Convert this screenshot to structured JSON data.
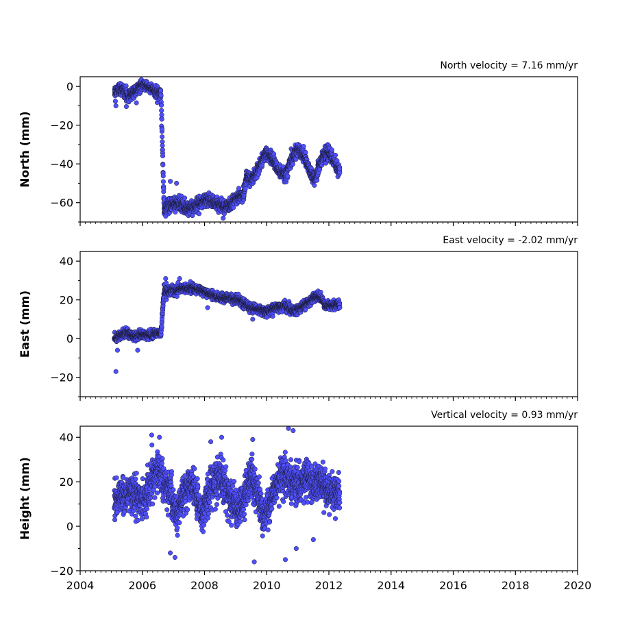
{
  "chart_data": {
    "type": "scatter",
    "layout": "3 vertically stacked panels sharing the x axis",
    "x_axis": {
      "xlim": [
        2004,
        2020
      ],
      "major_ticks": [
        2004,
        2006,
        2008,
        2010,
        2012,
        2014,
        2016,
        2018,
        2020
      ],
      "tick_labels": [
        "2004",
        "2006",
        "2008",
        "2010",
        "2012",
        "2014",
        "2016",
        "2018",
        "2020"
      ],
      "minor_tick_step_years": 0.16666
    },
    "marker": {
      "fill": "#4f4fff",
      "edge": "#1a1a33",
      "shape": "circle"
    },
    "panels": [
      {
        "key": "north",
        "title": "North velocity = 7.16 mm/yr",
        "ylabel": "North (mm)",
        "ylim": [
          -70,
          5
        ],
        "yticks": [
          0,
          -20,
          -40,
          -60
        ],
        "ytick_labels": [
          "0",
          "−20",
          "−40",
          "−60"
        ],
        "series": {
          "name": "",
          "x": [
            2005.1,
            2005.25,
            2005.4,
            2005.55,
            2005.7,
            2005.85,
            2006.0,
            2006.15,
            2006.3,
            2006.45,
            2006.6,
            2006.7,
            2006.9,
            2007.1,
            2007.3,
            2007.5,
            2007.7,
            2007.9,
            2008.1,
            2008.3,
            2008.5,
            2008.7,
            2008.9,
            2009.1,
            2009.25,
            2009.35,
            2009.5,
            2009.65,
            2009.8,
            2010.0,
            2010.2,
            2010.4,
            2010.6,
            2010.8,
            2011.0,
            2011.2,
            2011.4,
            2011.55,
            2011.7,
            2011.85,
            2012.0,
            2012.2,
            2012.35
          ],
          "y": [
            -3,
            -1,
            -2,
            -5,
            -3,
            -1,
            1,
            0,
            -1,
            -3,
            -4,
            -63,
            -61,
            -60,
            -62,
            -63,
            -62,
            -60,
            -58,
            -60,
            -61,
            -62,
            -60,
            -56,
            -57,
            -46,
            -48,
            -45,
            -40,
            -34,
            -38,
            -44,
            -46,
            -38,
            -32,
            -36,
            -44,
            -48,
            -40,
            -35,
            -34,
            -40,
            -44
          ],
          "spread": [
            3,
            3,
            3,
            3,
            3,
            3,
            2,
            2,
            2,
            3,
            3,
            3,
            3,
            3,
            3,
            3,
            3,
            3,
            3,
            3,
            3,
            3,
            3,
            3,
            3,
            3,
            3,
            3,
            3,
            3,
            3,
            3,
            3,
            3,
            3,
            3,
            3,
            3,
            3,
            3,
            3,
            3,
            3
          ],
          "outliers": [
            [
              2005.15,
              -10
            ],
            [
              2006.9,
              -49
            ],
            [
              2007.1,
              -50
            ],
            [
              2006.75,
              -67
            ],
            [
              2008.6,
              -68
            ]
          ]
        }
      },
      {
        "key": "east",
        "title": "East velocity = -2.02 mm/yr",
        "ylabel": "East (mm)",
        "ylim": [
          -30,
          45
        ],
        "yticks": [
          40,
          20,
          0,
          -20
        ],
        "ytick_labels": [
          "40",
          "20",
          "0",
          "−20"
        ],
        "series": {
          "name": "",
          "x": [
            2005.1,
            2005.3,
            2005.5,
            2005.7,
            2005.9,
            2006.1,
            2006.3,
            2006.5,
            2006.6,
            2006.7,
            2007.0,
            2007.3,
            2007.6,
            2007.9,
            2008.2,
            2008.5,
            2008.8,
            2009.1,
            2009.4,
            2009.7,
            2010.0,
            2010.3,
            2010.6,
            2010.9,
            2011.2,
            2011.5,
            2011.7,
            2011.9,
            2012.1,
            2012.35
          ],
          "y": [
            0,
            2,
            3,
            1,
            2,
            2,
            2,
            3,
            3,
            24,
            25,
            26,
            26,
            25,
            23,
            21,
            21,
            20,
            17,
            15,
            14,
            16,
            17,
            14,
            17,
            21,
            22,
            17,
            17,
            18
          ],
          "spread": [
            2,
            2,
            2,
            2,
            2,
            2,
            2,
            2,
            2,
            2.5,
            2.5,
            2,
            2,
            2,
            2,
            2,
            2,
            2,
            2,
            2,
            2,
            2,
            2,
            2,
            2,
            2,
            2,
            2,
            2,
            2
          ],
          "outliers": [
            [
              2005.15,
              -17
            ],
            [
              2005.2,
              -6
            ],
            [
              2005.85,
              -6
            ],
            [
              2006.75,
              31
            ],
            [
              2007.2,
              31
            ],
            [
              2008.1,
              16
            ],
            [
              2009.55,
              10
            ],
            [
              2010.0,
              11
            ]
          ]
        }
      },
      {
        "key": "height",
        "title": "Vertical velocity = 0.93 mm/yr",
        "ylabel": "Height (mm)",
        "ylim": [
          -20,
          45
        ],
        "yticks": [
          40,
          20,
          0,
          -20
        ],
        "ytick_labels": [
          "40",
          "20",
          "0",
          "−20"
        ],
        "series": {
          "name": "",
          "x": [
            2005.1,
            2005.3,
            2005.5,
            2005.7,
            2005.9,
            2006.1,
            2006.3,
            2006.5,
            2006.7,
            2006.9,
            2007.1,
            2007.3,
            2007.5,
            2007.7,
            2007.9,
            2008.1,
            2008.3,
            2008.5,
            2008.7,
            2008.9,
            2009.1,
            2009.3,
            2009.5,
            2009.7,
            2009.9,
            2010.1,
            2010.3,
            2010.5,
            2010.7,
            2010.9,
            2011.1,
            2011.3,
            2011.5,
            2011.7,
            2011.9,
            2012.1,
            2012.35
          ],
          "y": [
            10,
            14,
            14,
            16,
            12,
            12,
            22,
            26,
            20,
            14,
            6,
            14,
            18,
            16,
            6,
            14,
            20,
            22,
            18,
            10,
            8,
            14,
            22,
            16,
            4,
            10,
            18,
            24,
            22,
            20,
            18,
            22,
            18,
            22,
            16,
            16,
            15
          ],
          "spread": [
            7,
            7,
            7,
            7,
            7,
            7,
            8,
            8,
            8,
            8,
            8,
            7,
            7,
            7,
            7,
            7,
            7,
            8,
            8,
            8,
            7,
            7,
            8,
            8,
            7,
            7,
            7,
            8,
            8,
            8,
            7,
            7,
            7,
            7,
            7,
            7,
            7
          ],
          "outliers": [
            [
              2006.3,
              41
            ],
            [
              2006.55,
              40
            ],
            [
              2008.2,
              38
            ],
            [
              2008.55,
              40
            ],
            [
              2009.55,
              39
            ],
            [
              2010.7,
              44
            ],
            [
              2010.85,
              43
            ],
            [
              2009.6,
              -16
            ],
            [
              2010.6,
              -15
            ],
            [
              2010.95,
              -10
            ],
            [
              2011.5,
              -6
            ],
            [
              2007.05,
              -14
            ],
            [
              2006.9,
              -12
            ]
          ]
        }
      }
    ]
  }
}
